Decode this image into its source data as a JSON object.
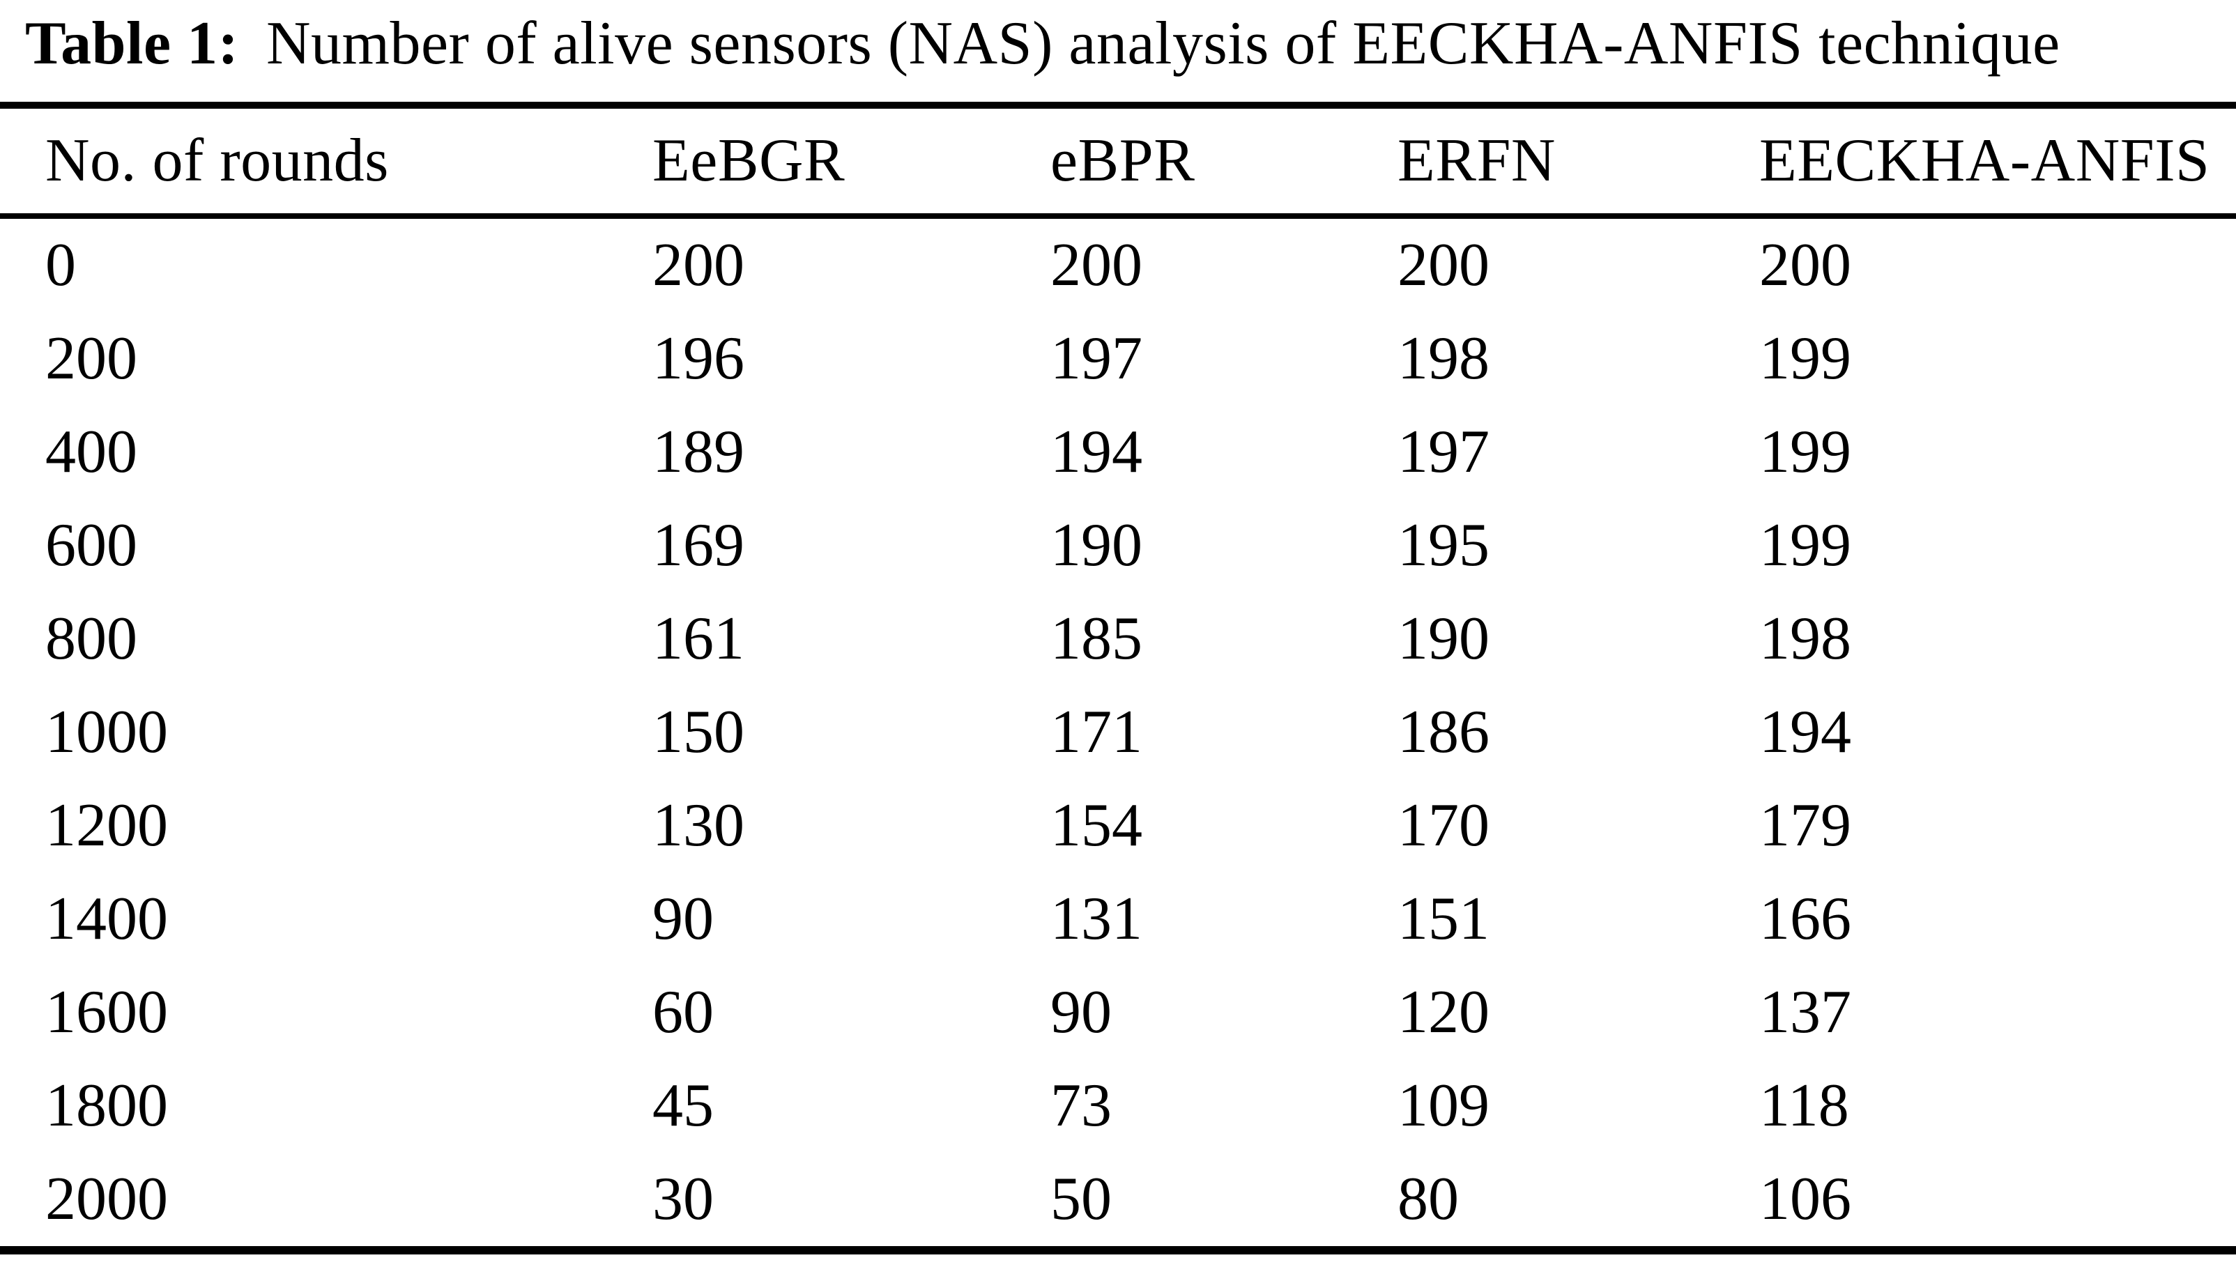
{
  "table": {
    "title_label": "Table 1:",
    "title_text": "Number of alive sensors (NAS) analysis of EECKHA-ANFIS technique",
    "columns": [
      "No. of rounds",
      "EeBGR",
      "eBPR",
      "ERFN",
      "EECKHA-ANFIS"
    ],
    "rows": [
      [
        "0",
        "200",
        "200",
        "200",
        "200"
      ],
      [
        "200",
        "196",
        "197",
        "198",
        "199"
      ],
      [
        "400",
        "189",
        "194",
        "197",
        "199"
      ],
      [
        "600",
        "169",
        "190",
        "195",
        "199"
      ],
      [
        "800",
        "161",
        "185",
        "190",
        "198"
      ],
      [
        "1000",
        "150",
        "171",
        "186",
        "194"
      ],
      [
        "1200",
        "130",
        "154",
        "170",
        "179"
      ],
      [
        "1400",
        "90",
        "131",
        "151",
        "166"
      ],
      [
        "1600",
        "60",
        "90",
        "120",
        "137"
      ],
      [
        "1800",
        "45",
        "73",
        "109",
        "118"
      ],
      [
        "2000",
        "30",
        "50",
        "80",
        "106"
      ]
    ]
  },
  "colors": {
    "text": "#000000",
    "background": "#ffffff",
    "rule": "#000000"
  },
  "chart_data": {
    "type": "table",
    "title": "Table 1: Number of alive sensors (NAS) analysis of EECKHA-ANFIS technique",
    "columns": [
      "No. of rounds",
      "EeBGR",
      "eBPR",
      "ERFN",
      "EECKHA-ANFIS"
    ],
    "x": [
      0,
      200,
      400,
      600,
      800,
      1000,
      1200,
      1400,
      1600,
      1800,
      2000
    ],
    "series": [
      {
        "name": "EeBGR",
        "values": [
          200,
          196,
          189,
          169,
          161,
          150,
          130,
          90,
          60,
          45,
          30
        ]
      },
      {
        "name": "eBPR",
        "values": [
          200,
          197,
          194,
          190,
          185,
          171,
          154,
          131,
          90,
          73,
          50
        ]
      },
      {
        "name": "ERFN",
        "values": [
          200,
          198,
          197,
          195,
          190,
          186,
          170,
          151,
          120,
          109,
          80
        ]
      },
      {
        "name": "EECKHA-ANFIS",
        "values": [
          200,
          199,
          199,
          199,
          198,
          194,
          179,
          166,
          137,
          118,
          106
        ]
      }
    ],
    "xlabel": "No. of rounds",
    "ylabel": "Number of alive sensors"
  }
}
